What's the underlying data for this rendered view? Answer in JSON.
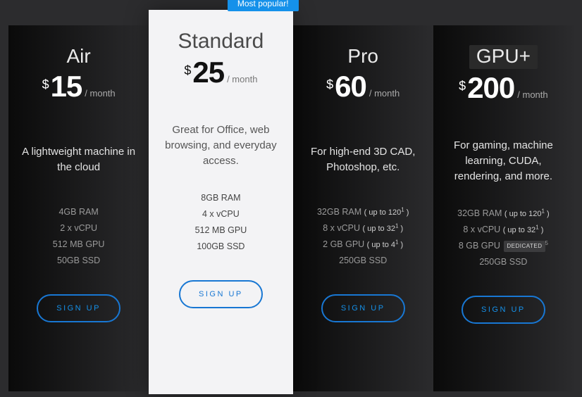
{
  "badge_text": "Most popular!",
  "currency_symbol": "$",
  "period_label": "/ month",
  "signup_label": "SIGN UP",
  "colors": {
    "accent_blue": "#1591ea",
    "button_border": "#1877d3",
    "dark_bg_start": "#0a0a0a",
    "dark_bg_end": "#2b2b2d",
    "featured_bg": "#f3f3f5",
    "page_bg": "#2c2c2e"
  },
  "plans": [
    {
      "name": "Air",
      "price": "15",
      "description": "A lightweight machine in the cloud",
      "specs": [
        {
          "main": "4GB RAM"
        },
        {
          "main": "2 x vCPU"
        },
        {
          "main": "512 MB GPU"
        },
        {
          "main": "50GB SSD"
        }
      ],
      "featured": false,
      "boxed_name": false
    },
    {
      "name": "Standard",
      "price": "25",
      "description": "Great for Office, web browsing, and everyday access.",
      "specs": [
        {
          "main": "8GB RAM"
        },
        {
          "main": "4 x vCPU"
        },
        {
          "main": "512 MB GPU"
        },
        {
          "main": "100GB SSD"
        }
      ],
      "featured": true,
      "boxed_name": false
    },
    {
      "name": "Pro",
      "price": "60",
      "description": "For high-end 3D CAD, Photoshop, etc.",
      "specs": [
        {
          "main": "32GB RAM",
          "extra": "( up to 120",
          "sup": "1",
          "extra_close": ")"
        },
        {
          "main": "8 x vCPU",
          "extra": "( up to 32",
          "sup": "1",
          "extra_close": ")"
        },
        {
          "main": "2 GB GPU",
          "extra": "( up to 4",
          "sup": "1",
          "extra_close": ")"
        },
        {
          "main": "250GB SSD"
        }
      ],
      "featured": false,
      "boxed_name": false
    },
    {
      "name": "GPU+",
      "price": "200",
      "description": "For gaming, machine learning, CUDA, rendering, and more.",
      "specs": [
        {
          "main": "32GB RAM",
          "extra": "( up to 120",
          "sup": "1",
          "extra_close": ")"
        },
        {
          "main": "8 x vCPU",
          "extra": "( up to 32",
          "sup": "1",
          "extra_close": ")"
        },
        {
          "main": "8 GB GPU",
          "pill": "DEDICATED",
          "sup_after_pill": "5"
        },
        {
          "main": "250GB SSD"
        }
      ],
      "featured": false,
      "boxed_name": true
    }
  ]
}
